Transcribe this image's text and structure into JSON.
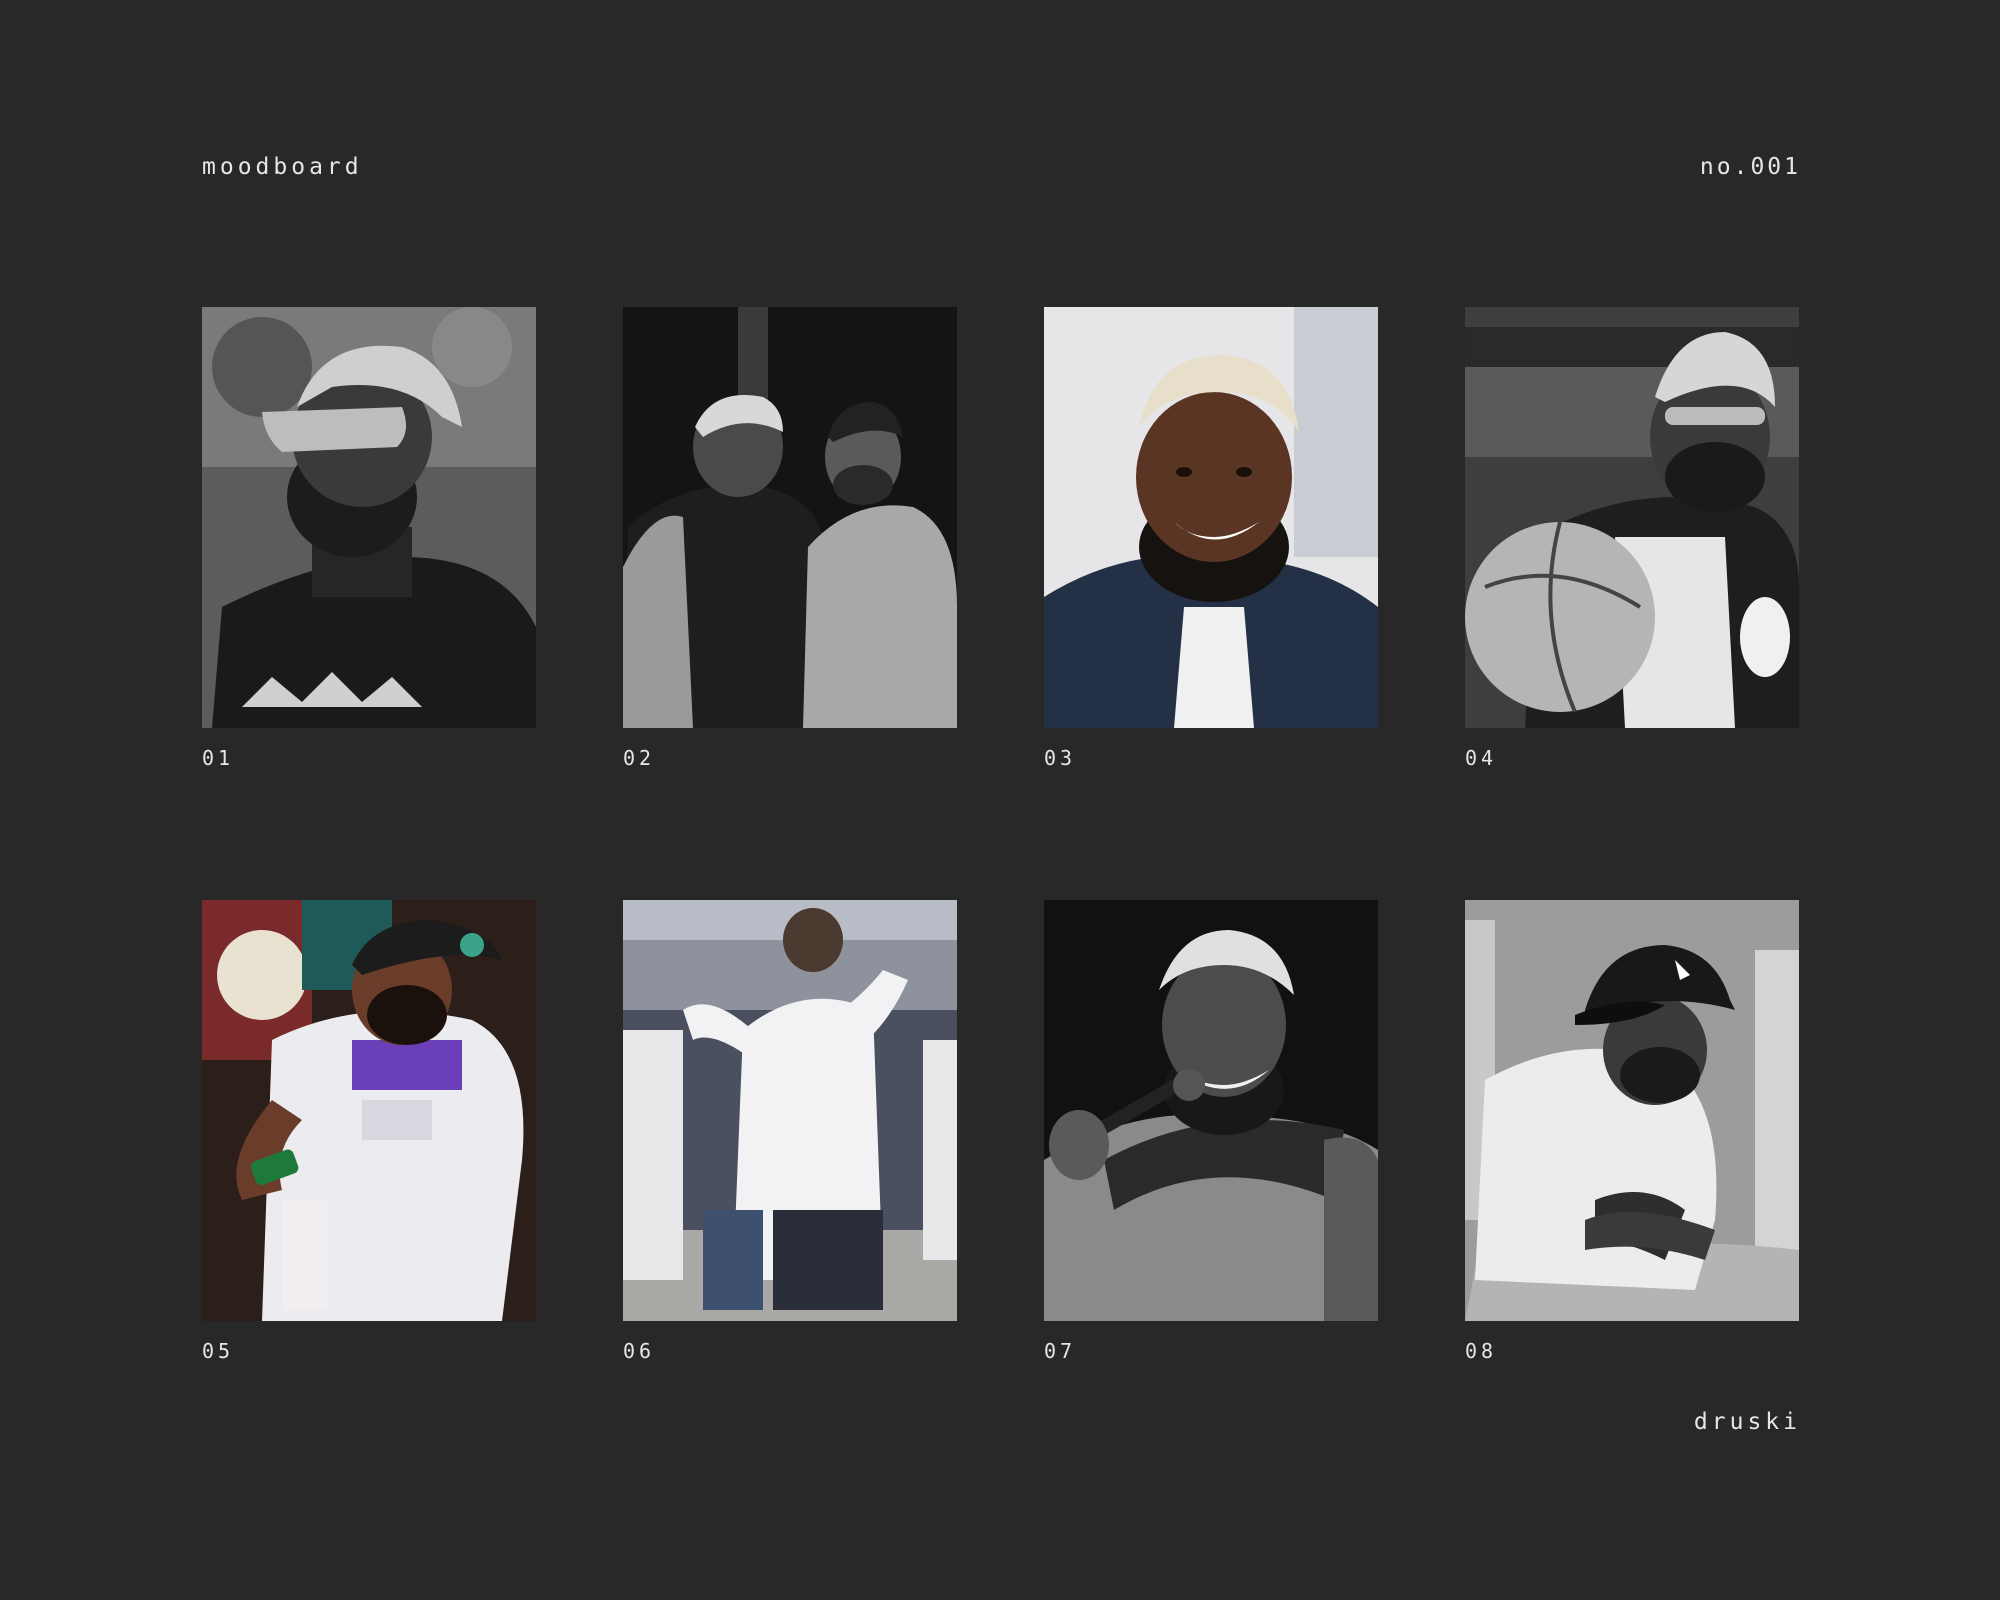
{
  "header": {
    "title": "moodboard",
    "issue": "no.001"
  },
  "footer": {
    "name": "druski"
  },
  "tiles": [
    {
      "label": "01",
      "palette": "mono",
      "bg": "#6a6a6a"
    },
    {
      "label": "02",
      "palette": "mono",
      "bg": "#1a1a1a"
    },
    {
      "label": "03",
      "palette": "color",
      "bg": "#e8e8ea"
    },
    {
      "label": "04",
      "palette": "mono",
      "bg": "#4a4a4a"
    },
    {
      "label": "05",
      "palette": "color",
      "bg": "#3a2a22"
    },
    {
      "label": "06",
      "palette": "color",
      "bg": "#8a8f9a"
    },
    {
      "label": "07",
      "palette": "mono",
      "bg": "#121216"
    },
    {
      "label": "08",
      "palette": "mono",
      "bg": "#9a9a9a"
    }
  ]
}
